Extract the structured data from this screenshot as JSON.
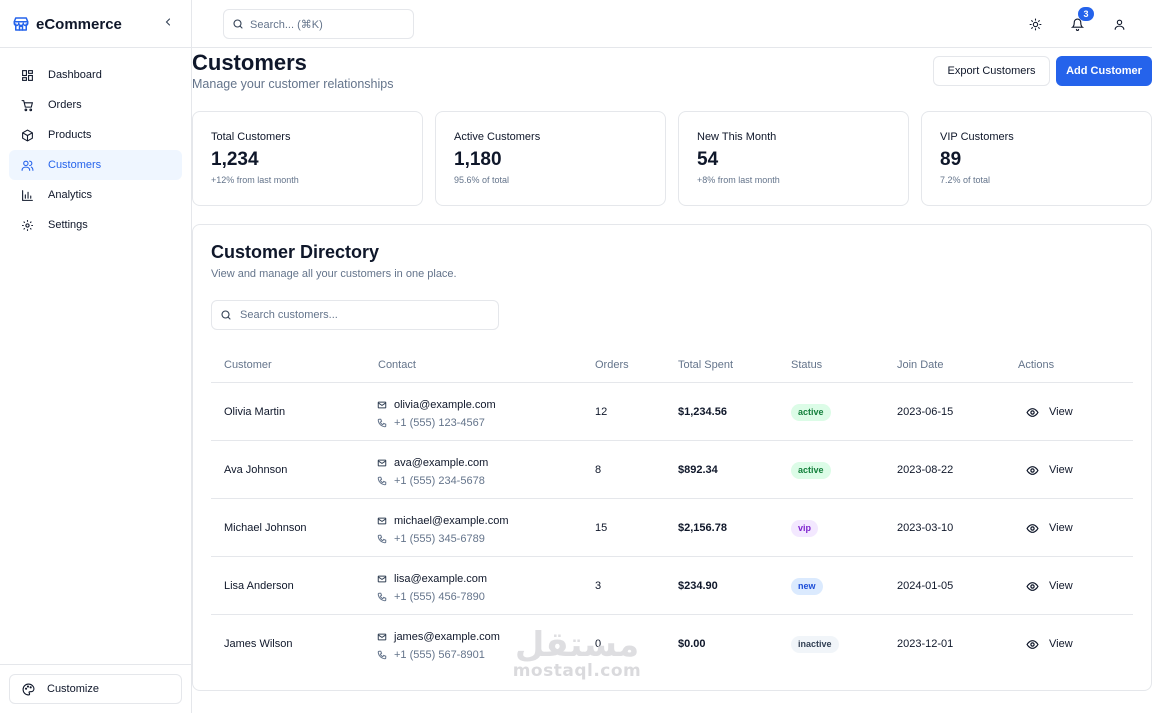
{
  "app": {
    "name": "eCommerce"
  },
  "sidebar": {
    "items": [
      {
        "label": "Dashboard",
        "icon": "dashboard-icon",
        "active": false
      },
      {
        "label": "Orders",
        "icon": "cart-icon",
        "active": false
      },
      {
        "label": "Products",
        "icon": "package-icon",
        "active": false
      },
      {
        "label": "Customers",
        "icon": "users-icon",
        "active": true
      },
      {
        "label": "Analytics",
        "icon": "bar-chart-icon",
        "active": false
      },
      {
        "label": "Settings",
        "icon": "gear-icon",
        "active": false
      }
    ],
    "customize_label": "Customize"
  },
  "topbar": {
    "search_placeholder": "Search... (⌘K)",
    "notification_count": "3"
  },
  "header": {
    "title": "Customers",
    "subtitle": "Manage your customer relationships",
    "export_label": "Export Customers",
    "add_label": "Add Customer"
  },
  "stats": [
    {
      "label": "Total Customers",
      "value": "1,234",
      "note": "+12% from last month"
    },
    {
      "label": "Active Customers",
      "value": "1,180",
      "note": "95.6% of total"
    },
    {
      "label": "New This Month",
      "value": "54",
      "note": "+8% from last month"
    },
    {
      "label": "VIP Customers",
      "value": "89",
      "note": "7.2% of total"
    }
  ],
  "directory": {
    "title": "Customer Directory",
    "subtitle": "View and manage all your customers in one place.",
    "search_placeholder": "Search customers...",
    "columns": [
      "Customer",
      "Contact",
      "Orders",
      "Total Spent",
      "Status",
      "Join Date",
      "Actions"
    ],
    "view_label": "View",
    "rows": [
      {
        "name": "Olivia Martin",
        "email": "olivia@example.com",
        "phone": "+1 (555) 123-4567",
        "orders": "12",
        "spent": "$1,234.56",
        "status": "active",
        "joined": "2023-06-15"
      },
      {
        "name": "Ava Johnson",
        "email": "ava@example.com",
        "phone": "+1 (555) 234-5678",
        "orders": "8",
        "spent": "$892.34",
        "status": "active",
        "joined": "2023-08-22"
      },
      {
        "name": "Michael Johnson",
        "email": "michael@example.com",
        "phone": "+1 (555) 345-6789",
        "orders": "15",
        "spent": "$2,156.78",
        "status": "vip",
        "joined": "2023-03-10"
      },
      {
        "name": "Lisa Anderson",
        "email": "lisa@example.com",
        "phone": "+1 (555) 456-7890",
        "orders": "3",
        "spent": "$234.90",
        "status": "new",
        "joined": "2024-01-05"
      },
      {
        "name": "James Wilson",
        "email": "james@example.com",
        "phone": "+1 (555) 567-8901",
        "orders": "0",
        "spent": "$0.00",
        "status": "inactive",
        "joined": "2023-12-01"
      }
    ]
  },
  "status_colors": {
    "active": {
      "bg": "#dcfce7",
      "fg": "#15803d"
    },
    "vip": {
      "bg": "#f3e8ff",
      "fg": "#7e22ce"
    },
    "new": {
      "bg": "#dbeafe",
      "fg": "#1d4ed8"
    },
    "inactive": {
      "bg": "#f1f5f9",
      "fg": "#334155"
    }
  },
  "watermark": {
    "arabic": "مستقل",
    "latin": "mostaql.com"
  },
  "colors": {
    "accent": "#2563eb",
    "border": "#e5e7eb",
    "muted": "#64748b"
  }
}
